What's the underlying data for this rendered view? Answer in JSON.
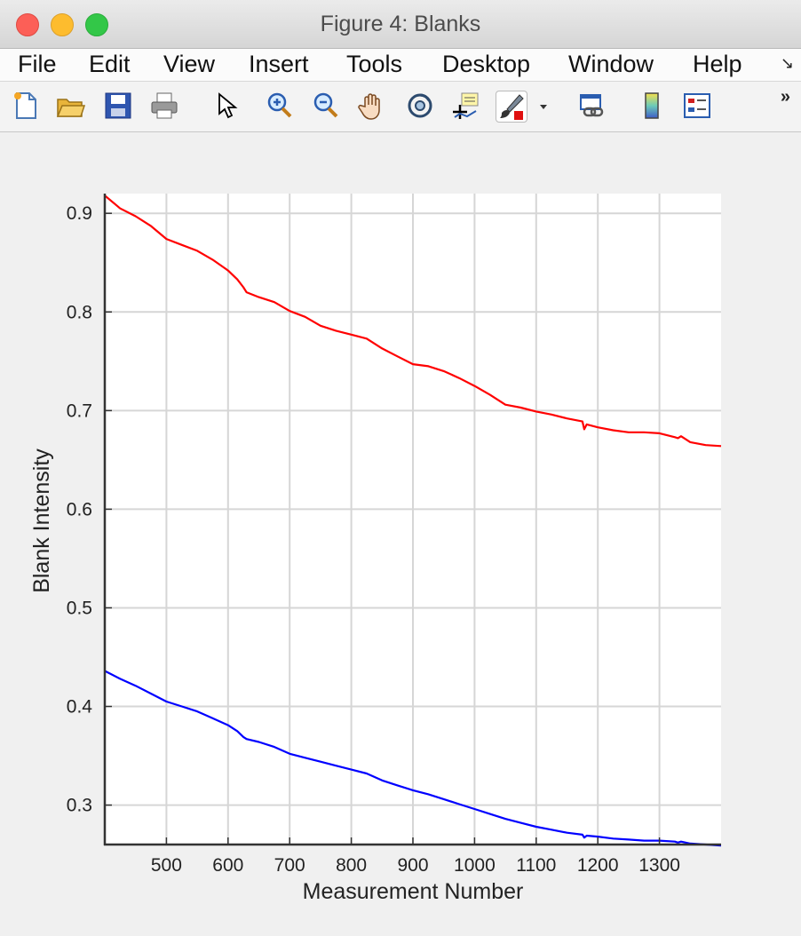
{
  "window": {
    "title": "Figure 4: Blanks"
  },
  "menu": [
    "File",
    "Edit",
    "View",
    "Insert",
    "Tools",
    "Desktop",
    "Window",
    "Help"
  ],
  "toolbar": {
    "buttons": [
      "new-figure",
      "open-file",
      "save",
      "print",
      "select-pointer",
      "zoom-in",
      "zoom-out",
      "pan",
      "rotate-3d",
      "data-cursor",
      "brush",
      "brush-dropdown",
      "link-plot",
      "colorbar",
      "legend"
    ]
  },
  "chart_data": {
    "type": "line",
    "title": "",
    "xlabel": "Measurement Number",
    "ylabel": "Blank Intensity",
    "xlim": [
      400,
      1400
    ],
    "ylim": [
      0.26,
      0.92
    ],
    "xticks": [
      500,
      600,
      700,
      800,
      900,
      1000,
      1100,
      1200,
      1300
    ],
    "yticks": [
      0.3,
      0.4,
      0.5,
      0.6,
      0.7,
      0.8,
      0.9
    ],
    "grid": true,
    "series": [
      {
        "color": "#ff0000",
        "x": [
          400,
          425,
          450,
          475,
          500,
          525,
          550,
          575,
          600,
          615,
          625,
          630,
          650,
          675,
          700,
          725,
          750,
          775,
          800,
          825,
          850,
          875,
          900,
          925,
          950,
          975,
          1000,
          1025,
          1050,
          1075,
          1100,
          1125,
          1150,
          1175,
          1178,
          1182,
          1200,
          1225,
          1250,
          1275,
          1300,
          1325,
          1330,
          1335,
          1350,
          1375,
          1400
        ],
        "values": [
          0.918,
          0.905,
          0.897,
          0.887,
          0.874,
          0.868,
          0.862,
          0.853,
          0.842,
          0.833,
          0.825,
          0.82,
          0.815,
          0.81,
          0.801,
          0.795,
          0.786,
          0.781,
          0.777,
          0.773,
          0.763,
          0.755,
          0.747,
          0.745,
          0.74,
          0.733,
          0.725,
          0.716,
          0.706,
          0.703,
          0.699,
          0.696,
          0.692,
          0.689,
          0.681,
          0.686,
          0.683,
          0.68,
          0.678,
          0.678,
          0.677,
          0.673,
          0.672,
          0.674,
          0.668,
          0.665,
          0.664
        ]
      },
      {
        "color": "#0000ff",
        "x": [
          400,
          425,
          450,
          475,
          500,
          525,
          550,
          575,
          600,
          615,
          625,
          630,
          650,
          675,
          700,
          725,
          750,
          775,
          800,
          825,
          850,
          875,
          900,
          925,
          950,
          975,
          1000,
          1025,
          1050,
          1075,
          1100,
          1125,
          1150,
          1175,
          1178,
          1182,
          1200,
          1225,
          1250,
          1275,
          1300,
          1325,
          1330,
          1335,
          1350,
          1375,
          1400
        ],
        "values": [
          0.436,
          0.428,
          0.421,
          0.413,
          0.405,
          0.4,
          0.395,
          0.388,
          0.381,
          0.375,
          0.369,
          0.367,
          0.364,
          0.359,
          0.352,
          0.348,
          0.344,
          0.34,
          0.336,
          0.332,
          0.325,
          0.32,
          0.315,
          0.311,
          0.306,
          0.301,
          0.296,
          0.291,
          0.286,
          0.282,
          0.278,
          0.275,
          0.272,
          0.27,
          0.267,
          0.269,
          0.268,
          0.266,
          0.265,
          0.264,
          0.264,
          0.263,
          0.262,
          0.263,
          0.261,
          0.26,
          0.259
        ]
      }
    ]
  }
}
